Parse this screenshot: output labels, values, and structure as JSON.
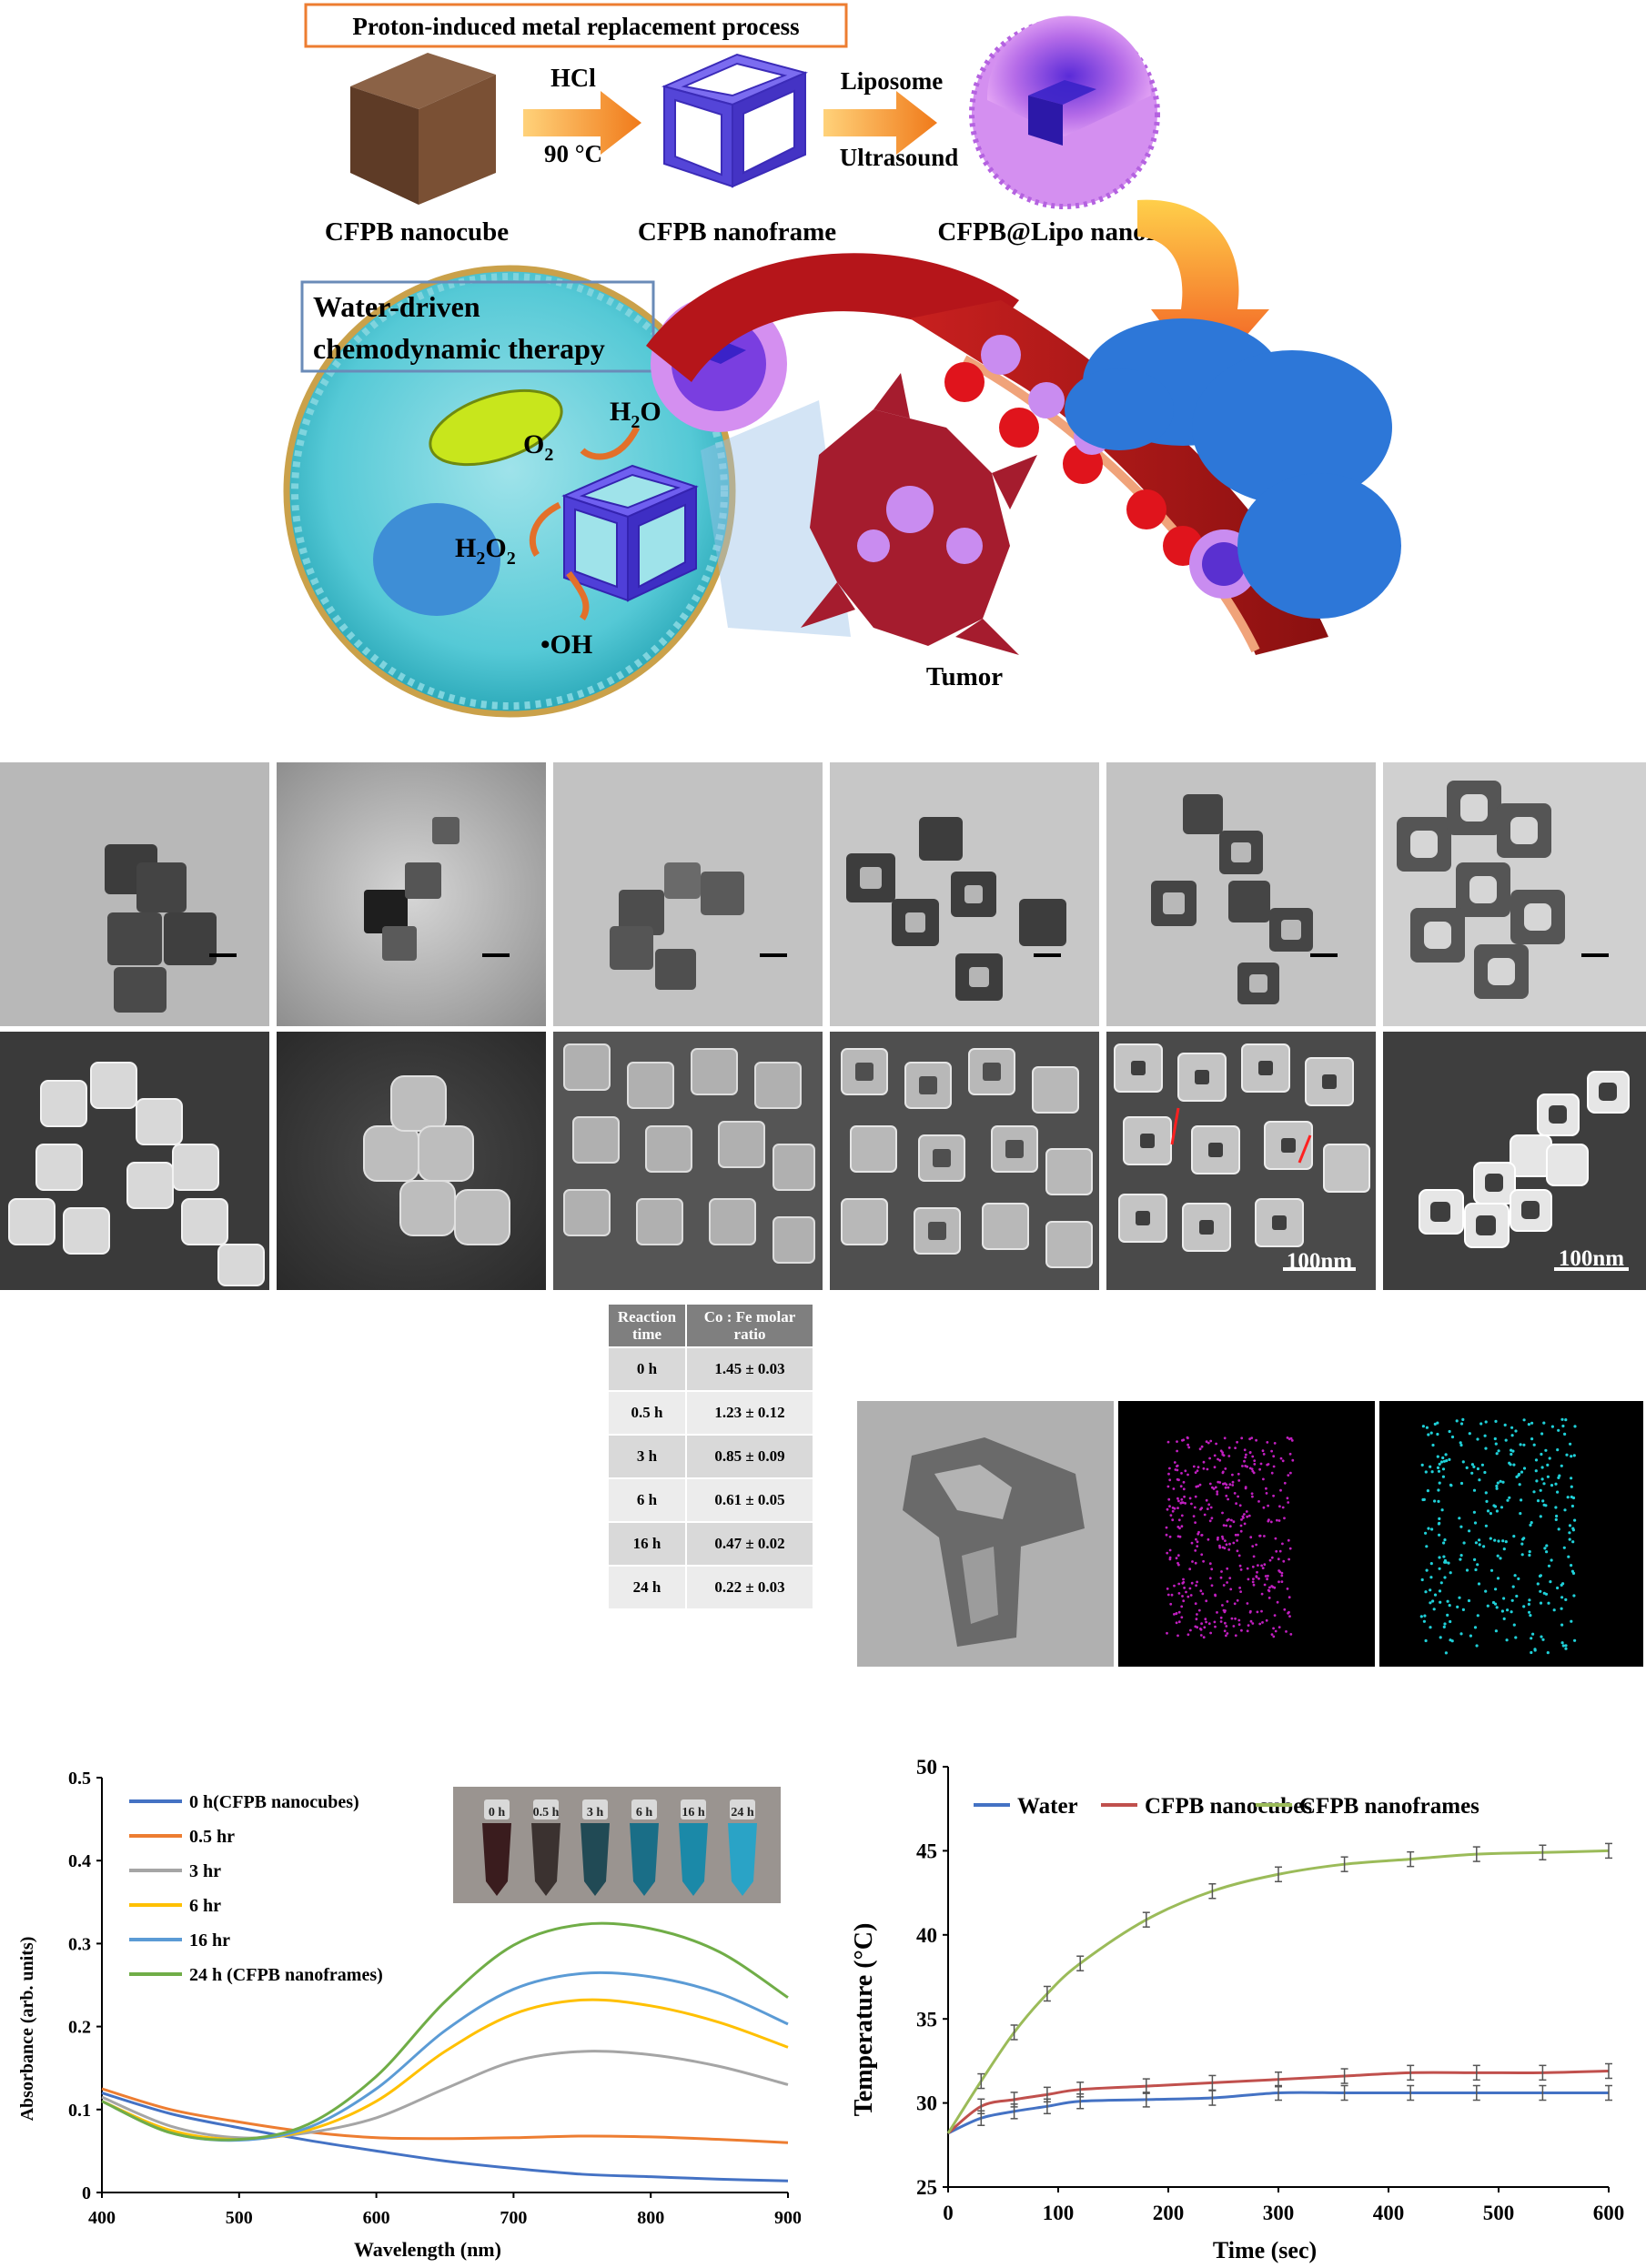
{
  "schematic": {
    "process_title": "Proton-induced metal replacement process",
    "step1": {
      "top": "HCl",
      "bottom": "90 °C"
    },
    "step2": {
      "top": "Liposome",
      "bottom": "Ultrasound"
    },
    "labels": {
      "nanocube": "CFPB nanocube",
      "nanoframe": "CFPB nanoframe",
      "lipo": "CFPB@Lipo nanoframe",
      "tumor": "Tumor"
    },
    "therapy_title_line1": "Water-driven",
    "therapy_title_line2": "chemodynamic therapy",
    "species": {
      "h2o_main": "H",
      "h2o_sub": "2",
      "h2o_end": "O",
      "o2_main": "O",
      "o2_sub": "2",
      "h2o2_main": "H",
      "h2o2_sub1": "2",
      "h2o2_mid": "O",
      "h2o2_sub2": "2",
      "oh": "•OH"
    }
  },
  "microscopy": {
    "scalebar_label": "100nm"
  },
  "ratio_table": {
    "headers": [
      "Reaction time",
      "Co : Fe molar ratio"
    ],
    "rows": [
      {
        "time": "0 h",
        "ratio": "1.45 ± 0.03"
      },
      {
        "time": "0.5 h",
        "ratio": "1.23 ± 0.12"
      },
      {
        "time": "3 h",
        "ratio": "0.85 ± 0.09"
      },
      {
        "time": "6 h",
        "ratio": "0.61 ± 0.05"
      },
      {
        "time": "16 h",
        "ratio": "0.47 ± 0.02"
      },
      {
        "time": "24 h",
        "ratio": "0.22 ± 0.03"
      }
    ]
  },
  "chart_data": [
    {
      "type": "line",
      "xlabel": "Wavelength (nm)",
      "ylabel": "Absorbance (arb. units)",
      "xlim": [
        400,
        900
      ],
      "ylim": [
        0,
        0.5
      ],
      "xticks": [
        400,
        500,
        600,
        700,
        800,
        900
      ],
      "yticks": [
        0,
        0.1,
        0.2,
        0.3,
        0.4,
        0.5
      ],
      "legend_position": "top-left",
      "inset_vial_labels": [
        "0 h",
        "0.5 h",
        "3 h",
        "6 h",
        "16 h",
        "24 h"
      ],
      "inset_vial_colors": [
        "#3a1c1e",
        "#3b3230",
        "#214a55",
        "#1a6e87",
        "#1b89a8",
        "#2aa3c6"
      ],
      "series": [
        {
          "name": "0 h(CFPB nanocubes)",
          "color": "#4472c4",
          "x": [
            400,
            450,
            500,
            550,
            600,
            650,
            700,
            750,
            800,
            850,
            900
          ],
          "y": [
            0.12,
            0.095,
            0.078,
            0.063,
            0.05,
            0.038,
            0.029,
            0.022,
            0.019,
            0.016,
            0.014
          ]
        },
        {
          "name": "0.5 hr",
          "color": "#ed7d31",
          "x": [
            400,
            450,
            500,
            550,
            600,
            650,
            700,
            750,
            800,
            850,
            900
          ],
          "y": [
            0.125,
            0.1,
            0.085,
            0.073,
            0.066,
            0.065,
            0.066,
            0.068,
            0.067,
            0.064,
            0.06
          ]
        },
        {
          "name": "3 hr",
          "color": "#a5a5a5",
          "x": [
            400,
            450,
            500,
            550,
            600,
            650,
            700,
            750,
            800,
            850,
            900
          ],
          "y": [
            0.115,
            0.08,
            0.066,
            0.072,
            0.09,
            0.125,
            0.158,
            0.17,
            0.166,
            0.152,
            0.13
          ]
        },
        {
          "name": "6 hr",
          "color": "#ffc000",
          "x": [
            400,
            450,
            500,
            550,
            600,
            650,
            700,
            750,
            800,
            850,
            900
          ],
          "y": [
            0.11,
            0.075,
            0.064,
            0.075,
            0.11,
            0.17,
            0.215,
            0.232,
            0.225,
            0.205,
            0.175
          ]
        },
        {
          "name": "16 hr",
          "color": "#5b9bd5",
          "x": [
            400,
            450,
            500,
            550,
            600,
            650,
            700,
            750,
            800,
            850,
            900
          ],
          "y": [
            0.11,
            0.072,
            0.063,
            0.078,
            0.125,
            0.195,
            0.245,
            0.264,
            0.26,
            0.24,
            0.203
          ]
        },
        {
          "name": "24 h (CFPB nanoframes)",
          "color": "#70ad47",
          "x": [
            400,
            450,
            500,
            550,
            600,
            650,
            700,
            750,
            800,
            850,
            900
          ],
          "y": [
            0.11,
            0.072,
            0.064,
            0.082,
            0.14,
            0.23,
            0.298,
            0.323,
            0.318,
            0.29,
            0.235
          ]
        }
      ]
    },
    {
      "type": "line",
      "xlabel": "Time (sec)",
      "ylabel": "Temperature (°C)",
      "xlim": [
        0,
        600
      ],
      "ylim": [
        25,
        50
      ],
      "xticks": [
        0,
        100,
        200,
        300,
        400,
        500,
        600
      ],
      "yticks": [
        25,
        30,
        35,
        40,
        45,
        50
      ],
      "legend_position": "top",
      "error_bars": true,
      "series": [
        {
          "name": "Water",
          "color": "#4472c4",
          "x": [
            0,
            30,
            60,
            90,
            120,
            180,
            240,
            300,
            360,
            420,
            480,
            540,
            600
          ],
          "y": [
            28.2,
            29.1,
            29.5,
            29.8,
            30.1,
            30.2,
            30.3,
            30.6,
            30.6,
            30.6,
            30.6,
            30.6,
            30.6
          ]
        },
        {
          "name": "CFPB nanocubes",
          "color": "#c0504d",
          "x": [
            0,
            30,
            60,
            90,
            120,
            180,
            240,
            300,
            360,
            420,
            480,
            540,
            600
          ],
          "y": [
            28.2,
            29.8,
            30.2,
            30.5,
            30.8,
            31.0,
            31.2,
            31.4,
            31.6,
            31.8,
            31.8,
            31.8,
            31.9
          ]
        },
        {
          "name": "CFPB nanoframes",
          "color": "#9bbb59",
          "x": [
            0,
            30,
            60,
            90,
            120,
            180,
            240,
            300,
            360,
            420,
            480,
            540,
            600
          ],
          "y": [
            28.2,
            31.3,
            34.2,
            36.5,
            38.3,
            40.9,
            42.6,
            43.6,
            44.2,
            44.5,
            44.8,
            44.9,
            45.0
          ]
        }
      ]
    }
  ]
}
